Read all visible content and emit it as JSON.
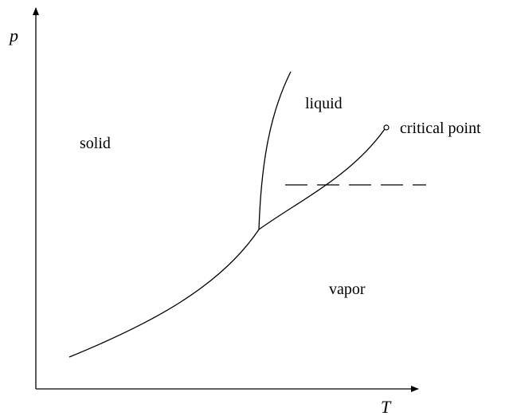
{
  "axes": {
    "y_label": "p",
    "x_label": "T"
  },
  "regions": {
    "solid": "solid",
    "liquid": "liquid",
    "vapor": "vapor"
  },
  "annotations": {
    "critical_point": "critical point"
  }
}
